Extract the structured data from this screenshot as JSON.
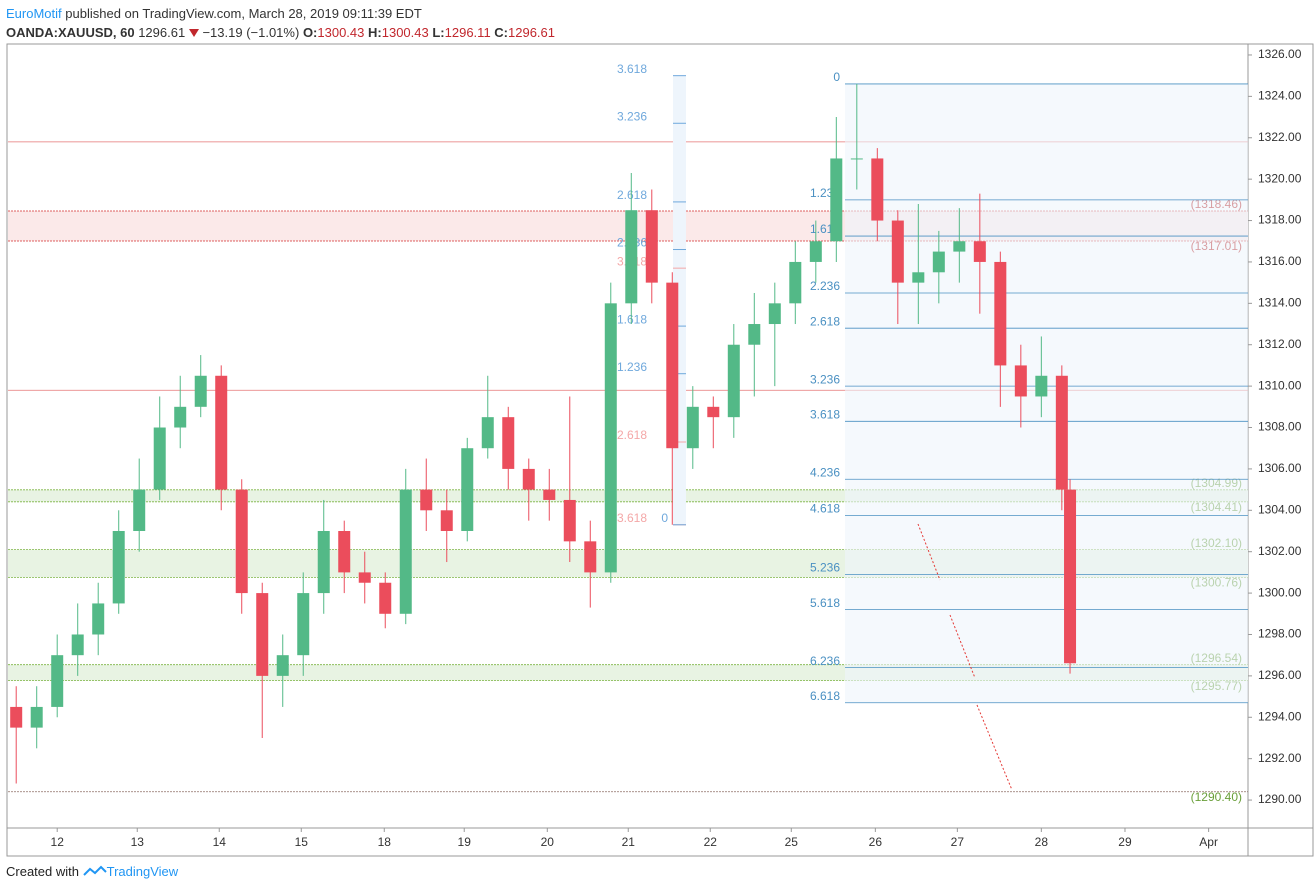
{
  "header": {
    "author": "EuroMotif",
    "published": "published on TradingView.com, March 28, 2019 09:11:39 EDT",
    "symbol": "OANDA:XAUUSD, 60",
    "last": "1296.61",
    "change": "−13.19 (−1.01%)",
    "ohlc": [
      {
        "label": "O:",
        "value": "1300.43"
      },
      {
        "label": "H:",
        "value": "1300.43"
      },
      {
        "label": "L:",
        "value": "1296.11"
      },
      {
        "label": "C:",
        "value": "1296.61"
      }
    ]
  },
  "chart_data": {
    "type": "candlestick",
    "up_color": "#53b987",
    "down_color": "#eb4d5c",
    "xlim": [
      -0.6,
      14.52
    ],
    "ylim": [
      1288.65,
      1326.53
    ],
    "xticks": [
      {
        "value": 0,
        "label": "12"
      },
      {
        "value": 0.976,
        "label": "13"
      },
      {
        "value": 1.976,
        "label": "14"
      },
      {
        "value": 2.976,
        "label": "15"
      },
      {
        "value": 3.988,
        "label": "18"
      },
      {
        "value": 4.963,
        "label": "19"
      },
      {
        "value": 5.976,
        "label": "20"
      },
      {
        "value": 6.963,
        "label": "21"
      },
      {
        "value": 7.963,
        "label": "22"
      },
      {
        "value": 8.951,
        "label": "25"
      },
      {
        "value": 9.976,
        "label": "26"
      },
      {
        "value": 10.976,
        "label": "27"
      },
      {
        "value": 12.0,
        "label": "28"
      },
      {
        "value": 13.02,
        "label": "29"
      },
      {
        "value": 14.04,
        "label": "Apr"
      }
    ],
    "yticks": [
      {
        "value": 1290,
        "label": "1290.00"
      },
      {
        "value": 1292,
        "label": "1292.00"
      },
      {
        "value": 1294,
        "label": "1294.00"
      },
      {
        "value": 1296,
        "label": "1296.00"
      },
      {
        "value": 1298,
        "label": "1298.00"
      },
      {
        "value": 1300,
        "label": "1300.00"
      },
      {
        "value": 1302,
        "label": "1302.00"
      },
      {
        "value": 1304,
        "label": "1304.00"
      },
      {
        "value": 1306,
        "label": "1306.00"
      },
      {
        "value": 1308,
        "label": "1308.00"
      },
      {
        "value": 1310,
        "label": "1310.00"
      },
      {
        "value": 1312,
        "label": "1312.00"
      },
      {
        "value": 1314,
        "label": "1314.00"
      },
      {
        "value": 1316,
        "label": "1316.00"
      },
      {
        "value": 1318,
        "label": "1318.00"
      },
      {
        "value": 1320,
        "label": "1320.00"
      },
      {
        "value": 1322,
        "label": "1322.00"
      },
      {
        "value": 1324,
        "label": "1324.00"
      },
      {
        "value": 1326,
        "label": "1326.00"
      }
    ],
    "x": [
      -0.5,
      -0.25,
      0,
      0.25,
      0.5,
      0.75,
      1,
      1.25,
      1.5,
      1.75,
      2,
      2.25,
      2.5,
      2.75,
      3,
      3.25,
      3.5,
      3.75,
      4,
      4.25,
      4.5,
      4.75,
      5,
      5.25,
      5.5,
      5.75,
      6,
      6.25,
      6.5,
      6.75,
      7,
      7.25,
      7.5,
      7.75,
      8,
      8.25,
      8.5,
      8.75,
      9,
      9.25,
      9.5,
      9.75,
      10,
      10.25,
      10.5,
      10.75,
      11,
      11.25,
      11.5,
      11.75,
      12,
      12.25,
      12.35
    ],
    "open": [
      1294.5,
      1293.5,
      1294.5,
      1297,
      1298,
      1299.5,
      1303,
      1305,
      1308,
      1309,
      1310.5,
      1305,
      1300,
      1296,
      1297,
      1300,
      1303,
      1301,
      1300.5,
      1299,
      1305,
      1304,
      1303,
      1307,
      1308.5,
      1306,
      1305,
      1304.5,
      1302.5,
      1301,
      1314,
      1318.5,
      1315,
      1307,
      1309,
      1308.5,
      1312,
      1313,
      1314,
      1316,
      1317,
      1321,
      1321,
      1318,
      1315,
      1315.5,
      1316.5,
      1317,
      1316,
      1311,
      1309.5,
      1310.5,
      1305
    ],
    "high": [
      1295.5,
      1295.5,
      1298,
      1299.5,
      1300.5,
      1304,
      1306.5,
      1309.5,
      1310.5,
      1311.5,
      1311,
      1305.5,
      1300.5,
      1298,
      1301,
      1304.5,
      1303.5,
      1302,
      1301,
      1306,
      1306.5,
      1305,
      1307.5,
      1310.5,
      1309,
      1306.5,
      1306,
      1309.5,
      1303.5,
      1315,
      1320.3,
      1319.5,
      1315.5,
      1310,
      1309.5,
      1313,
      1314.5,
      1315,
      1317,
      1318,
      1323,
      1324.6,
      1321.5,
      1318.5,
      1318.8,
      1317.5,
      1318.6,
      1319.3,
      1316.5,
      1312,
      1312.4,
      1311,
      1305.5
    ],
    "low": [
      1290.8,
      1292.5,
      1294,
      1296,
      1297,
      1299,
      1302,
      1304.5,
      1307,
      1308.5,
      1304,
      1299,
      1293,
      1294.5,
      1296,
      1299,
      1300,
      1299.5,
      1298.3,
      1298.5,
      1303,
      1301.5,
      1302.5,
      1306.5,
      1305,
      1303.5,
      1303.5,
      1301.5,
      1299.3,
      1300.5,
      1313,
      1314,
      1303.3,
      1306,
      1307,
      1307.5,
      1309.5,
      1310,
      1313,
      1315,
      1316,
      1319.5,
      1317,
      1313,
      1313,
      1314,
      1315,
      1313.5,
      1309,
      1308,
      1308.5,
      1304,
      1296.11
    ],
    "close": [
      1293.5,
      1294.5,
      1297,
      1298,
      1299.5,
      1303,
      1305,
      1308,
      1309,
      1310.5,
      1305,
      1300,
      1296,
      1297,
      1300,
      1303,
      1301,
      1300.5,
      1299,
      1305,
      1304,
      1303,
      1307,
      1308.5,
      1306,
      1305,
      1304.5,
      1302.5,
      1301,
      1314,
      1318.5,
      1315,
      1307,
      1309,
      1308.5,
      1312,
      1313,
      1314,
      1316,
      1317,
      1321,
      1321,
      1318,
      1315,
      1315.5,
      1316.5,
      1317,
      1316,
      1311,
      1309.5,
      1310.5,
      1305,
      1296.61
    ],
    "lines": [
      {
        "value": 1321.8,
        "color": "#e57373"
      },
      {
        "value": 1309.8,
        "color": "#e57373"
      }
    ],
    "zones": [
      {
        "color": "#fbe9e9",
        "line_color": "#d32f2f",
        "levels": [
          {
            "value": 1318.46,
            "label": "(1318.46)"
          },
          {
            "value": 1317.01,
            "label": "(1317.01)"
          }
        ]
      },
      {
        "color": "#e8f3e3",
        "line_color": "#7cb342",
        "levels": [
          {
            "value": 1304.99,
            "label": "(1304.99)"
          },
          {
            "value": 1304.41,
            "label": "(1304.41)"
          }
        ]
      },
      {
        "color": "#e8f3e3",
        "line_color": "#7cb342",
        "levels": [
          {
            "value": 1302.1,
            "label": "(1302.10)"
          },
          {
            "value": 1300.76,
            "label": "(1300.76)"
          }
        ]
      },
      {
        "color": "#e8f3e3",
        "line_color": "#7cb342",
        "levels": [
          {
            "value": 1296.54,
            "label": "(1296.54)"
          },
          {
            "value": 1295.77,
            "label": "(1295.77)"
          }
        ]
      },
      {
        "color": "none",
        "line_color": "#8d6e63",
        "levels": [
          {
            "value": 1290.4,
            "label": "(1290.40)"
          }
        ]
      }
    ],
    "fib_right": {
      "color": "#4a90c2",
      "levels": [
        {
          "label": "0",
          "value": 1324.6
        },
        {
          "label": "1.236",
          "value": 1319.0
        },
        {
          "label": "1.618",
          "value": 1317.25
        },
        {
          "label": "2.236",
          "value": 1314.5
        },
        {
          "label": "2.618",
          "value": 1312.8
        },
        {
          "label": "3.236",
          "value": 1310.0
        },
        {
          "label": "3.618",
          "value": 1308.3
        },
        {
          "label": "4.236",
          "value": 1305.5
        },
        {
          "label": "4.618",
          "value": 1303.75
        },
        {
          "label": "5.236",
          "value": 1300.9
        },
        {
          "label": "5.618",
          "value": 1299.2
        },
        {
          "label": "6.236",
          "value": 1296.4
        },
        {
          "label": "6.618",
          "value": 1294.7
        }
      ]
    },
    "fib_mid": [
      {
        "label": "3.618",
        "value": 1325.0,
        "color": "#6fa8dc"
      },
      {
        "label": "3.236",
        "value": 1322.7,
        "color": "#6fa8dc"
      },
      {
        "label": "2.618",
        "value": 1318.9,
        "color": "#6fa8dc"
      },
      {
        "label": "2.236",
        "value": 1316.6,
        "color": "#6fa8dc"
      },
      {
        "label": "3.618",
        "value": 1315.7,
        "color": "#f4a7a7"
      },
      {
        "label": "1.618",
        "value": 1312.9,
        "color": "#6fa8dc"
      },
      {
        "label": "1.236",
        "value": 1310.6,
        "color": "#6fa8dc"
      },
      {
        "label": "2.618",
        "value": 1307.3,
        "color": "#f4a7a7"
      },
      {
        "label": "3.618",
        "value": 1303.3,
        "color": "#f4a7a7"
      },
      {
        "label": "0",
        "value": 1303.3,
        "color": "#6fa8dc"
      }
    ]
  },
  "footer": {
    "created": "Created with",
    "brand": "TradingView"
  }
}
